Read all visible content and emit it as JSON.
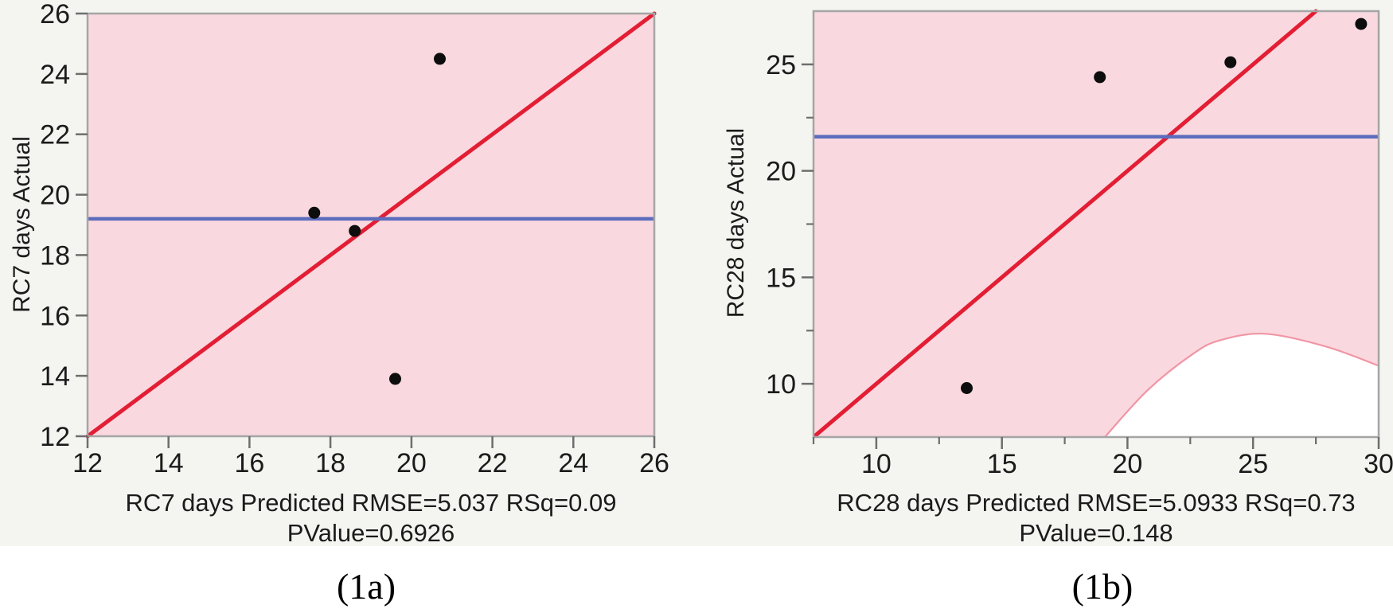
{
  "figure": {
    "page_bg": "#ffffff",
    "panel_bg": "#f4f4f1",
    "captions": [
      {
        "id": "1a",
        "text": "(1a)"
      },
      {
        "id": "1b",
        "text": "(1b)"
      }
    ]
  },
  "colors": {
    "confidence_region_pink": "#fad8df",
    "white_region_edge_pink": "#f096a5",
    "fit_line_red": "#e31e34",
    "mean_line_blue": "#5d6dbe",
    "plot_border_gray": "#a5a5a5",
    "tick_gray": "#6e6e6e",
    "text_dark": "#1b1b1b",
    "point_black": "#0d0d0d"
  },
  "chart_data": [
    {
      "type": "scatter",
      "panel": "1a",
      "ylabel": "RC7 days Actual",
      "xlabel_line1": "RC7 days Predicted RMSE=5.037 RSq=0.09",
      "xlabel_line2": "PValue=0.6926",
      "stats": {
        "RMSE": 5.037,
        "RSq": 0.09,
        "PValue": 0.6926
      },
      "xlim": [
        12,
        26
      ],
      "ylim": [
        12,
        26
      ],
      "x_ticks": [
        12,
        14,
        16,
        18,
        20,
        22,
        24,
        26
      ],
      "y_ticks": [
        12,
        14,
        16,
        18,
        20,
        22,
        24,
        26
      ],
      "x_minor_ticks": [],
      "y_minor_ticks": [],
      "points": [
        [
          17.6,
          19.4
        ],
        [
          18.6,
          18.8
        ],
        [
          19.6,
          13.9
        ],
        [
          20.7,
          24.5
        ]
      ],
      "mean_line_y": 19.2,
      "fit_line": {
        "x1": 12,
        "y1": 12,
        "x2": 26,
        "y2": 26
      },
      "confidence_region": "entire plot area shaded pink",
      "white_region_boundary": null,
      "grid": false,
      "legend": false
    },
    {
      "type": "scatter",
      "panel": "1b",
      "ylabel": "RC28 days Actual",
      "xlabel_line1": "RC28 days Predicted RMSE=5.0933 RSq=0.73",
      "xlabel_line2": "PValue=0.148",
      "stats": {
        "RMSE": 5.0933,
        "RSq": 0.73,
        "PValue": 0.148
      },
      "xlim": [
        7.5,
        30
      ],
      "ylim": [
        7.5,
        27.5
      ],
      "x_ticks": [
        10,
        15,
        20,
        25,
        30
      ],
      "y_ticks": [
        10,
        15,
        20,
        25
      ],
      "x_minor_ticks": [
        7.5,
        12.5,
        17.5,
        22.5,
        27.5
      ],
      "y_minor_ticks": [
        12.5,
        17.5,
        22.5
      ],
      "points": [
        [
          13.6,
          9.8
        ],
        [
          18.9,
          24.4
        ],
        [
          24.1,
          25.1
        ],
        [
          29.3,
          26.9
        ]
      ],
      "mean_line_y": 21.6,
      "fit_line": {
        "x1": 7.6,
        "y1": 7.6,
        "x2": 27.5,
        "y2": 27.5
      },
      "confidence_region": "shaded pink except lower-right white region",
      "white_region_boundary": [
        [
          19.1,
          7.5
        ],
        [
          20.8,
          9.7
        ],
        [
          22.6,
          11.4
        ],
        [
          23.7,
          12.05
        ],
        [
          25.5,
          12.35
        ],
        [
          27.9,
          11.75
        ],
        [
          30,
          10.85
        ]
      ],
      "grid": false,
      "legend": false
    }
  ]
}
